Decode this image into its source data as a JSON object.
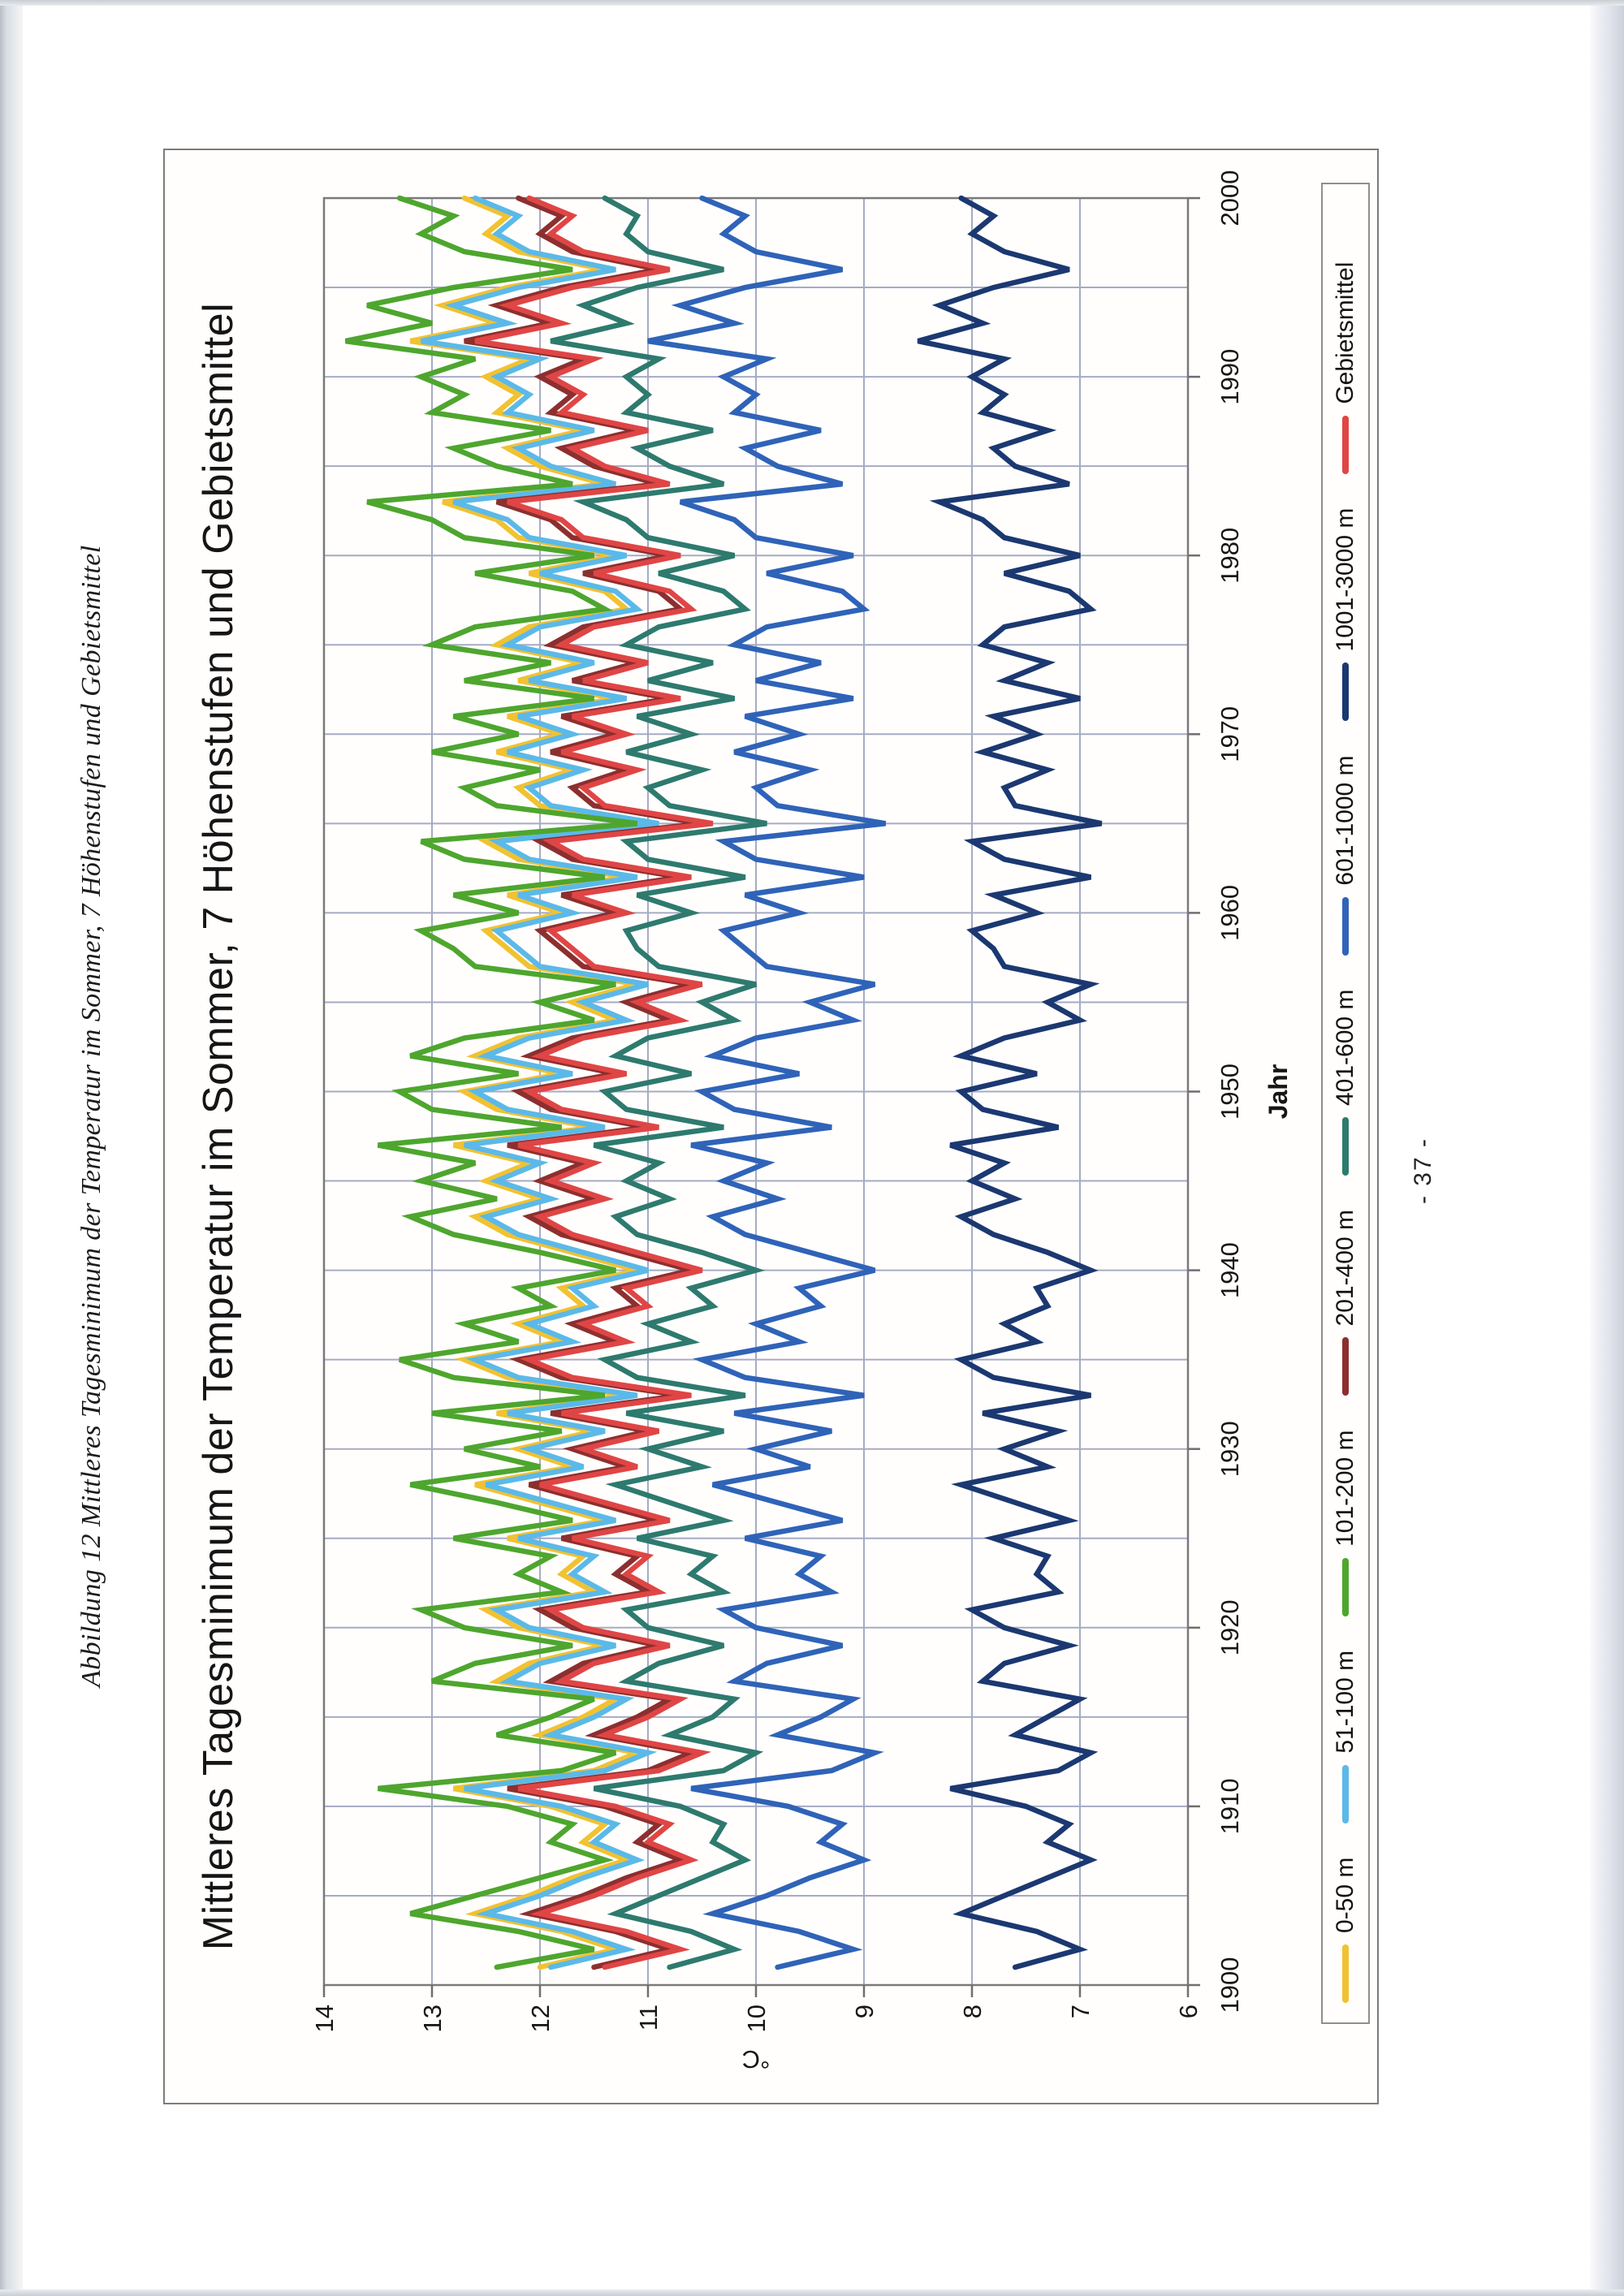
{
  "page": {
    "caption": "Abbildung 12 Mittleres Tagesminimum der Temperatur im Sommer, 7 Höhenstufen und Gebietsmittel",
    "page_number": "- 37 -"
  },
  "chart": {
    "title": "Mittleres Tagesminimum der Temperatur im Sommer, 7 Höhenstufen und Gebietsmittel",
    "x_axis_title": "Jahr",
    "y_axis_title": "°C",
    "x_tick_labels": [
      "1900",
      "1910",
      "1920",
      "1930",
      "1940",
      "1950",
      "1960",
      "1970",
      "1980",
      "1990",
      "2000"
    ],
    "y_tick_labels": [
      "14",
      "13",
      "12",
      "11",
      "10",
      "9",
      "8",
      "7",
      "6"
    ],
    "colors": {
      "gridline": "#a6abc4",
      "axis": "#6f6f6f",
      "plot_border": "#7a7a7a",
      "text": "#161616"
    }
  },
  "chart_data": {
    "type": "line",
    "title": "Mittleres Tagesminimum der Temperatur im Sommer, 7 Höhenstufen und Gebietsmittel",
    "xlabel": "Jahr",
    "ylabel": "°C",
    "xlim": [
      1900,
      2000
    ],
    "ylim": [
      6,
      14
    ],
    "x_grid_step": 5,
    "x_label_step": 10,
    "y_grid_step": 1,
    "grid": "on",
    "legend_position": "bottom",
    "orientation_note": "entire chart printed rotated 90deg counter-clockwise on portrait page",
    "x": [
      1901,
      1902,
      1903,
      1904,
      1905,
      1906,
      1907,
      1908,
      1909,
      1910,
      1911,
      1912,
      1913,
      1914,
      1915,
      1916,
      1917,
      1918,
      1919,
      1920,
      1921,
      1922,
      1923,
      1924,
      1925,
      1926,
      1927,
      1928,
      1929,
      1930,
      1931,
      1932,
      1933,
      1934,
      1935,
      1936,
      1937,
      1938,
      1939,
      1940,
      1941,
      1942,
      1943,
      1944,
      1945,
      1946,
      1947,
      1948,
      1949,
      1950,
      1951,
      1952,
      1953,
      1954,
      1955,
      1956,
      1957,
      1958,
      1959,
      1960,
      1961,
      1962,
      1963,
      1964,
      1965,
      1966,
      1967,
      1968,
      1969,
      1970,
      1971,
      1972,
      1973,
      1974,
      1975,
      1976,
      1977,
      1978,
      1979,
      1980,
      1981,
      1982,
      1983,
      1984,
      1985,
      1986,
      1987,
      1988,
      1989,
      1990,
      1991,
      1992,
      1993,
      1994,
      1995,
      1996,
      1997,
      1998,
      1999,
      2000
    ],
    "series": [
      {
        "name": "0-50 m",
        "color": "#f1c231",
        "values": [
          12.0,
          11.3,
          11.8,
          12.6,
          12.1,
          11.7,
          11.2,
          11.6,
          11.4,
          11.9,
          12.8,
          11.5,
          11.1,
          12.0,
          11.6,
          11.3,
          12.4,
          12.1,
          11.4,
          12.2,
          12.5,
          11.5,
          11.8,
          11.6,
          12.3,
          11.4,
          12.0,
          12.6,
          11.7,
          12.2,
          11.5,
          12.4,
          11.2,
          12.3,
          12.7,
          11.8,
          12.2,
          11.6,
          11.8,
          11.1,
          11.7,
          12.3,
          12.6,
          12.0,
          12.5,
          12.1,
          12.8,
          11.5,
          12.4,
          12.7,
          11.8,
          12.6,
          12.2,
          11.3,
          11.7,
          11.1,
          12.1,
          12.3,
          12.5,
          11.8,
          12.3,
          11.2,
          12.2,
          12.5,
          11.0,
          12.0,
          12.2,
          11.7,
          12.4,
          11.8,
          12.3,
          11.3,
          12.2,
          11.6,
          12.4,
          12.1,
          11.2,
          11.4,
          12.1,
          11.3,
          12.2,
          12.4,
          12.9,
          11.4,
          12.0,
          12.3,
          11.6,
          12.4,
          12.2,
          12.5,
          12.1,
          13.2,
          12.4,
          12.9,
          12.3,
          11.4,
          12.2,
          12.5,
          12.3,
          12.7
        ]
      },
      {
        "name": "51-100 m",
        "color": "#5bb9e9",
        "values": [
          11.9,
          11.2,
          11.7,
          12.5,
          12.0,
          11.6,
          11.1,
          11.5,
          11.3,
          11.8,
          12.7,
          11.4,
          11.0,
          11.9,
          11.5,
          11.2,
          12.3,
          12.0,
          11.3,
          12.1,
          12.4,
          11.4,
          11.7,
          11.5,
          12.2,
          11.3,
          11.9,
          12.5,
          11.6,
          12.1,
          11.4,
          12.3,
          11.1,
          12.2,
          12.6,
          11.7,
          12.1,
          11.5,
          11.7,
          11.0,
          11.6,
          12.2,
          12.5,
          11.9,
          12.4,
          12.0,
          12.7,
          11.4,
          12.3,
          12.6,
          11.7,
          12.5,
          12.1,
          11.2,
          11.6,
          11.0,
          12.0,
          12.2,
          12.4,
          11.7,
          12.2,
          11.1,
          12.1,
          12.4,
          10.9,
          11.9,
          12.1,
          11.6,
          12.3,
          11.7,
          12.2,
          11.2,
          12.1,
          11.5,
          12.3,
          12.0,
          11.1,
          11.3,
          12.0,
          11.2,
          12.1,
          12.3,
          12.8,
          11.3,
          11.9,
          12.2,
          11.5,
          12.3,
          12.1,
          12.4,
          12.0,
          13.1,
          12.3,
          12.8,
          12.2,
          11.3,
          12.1,
          12.4,
          12.2,
          12.6
        ]
      },
      {
        "name": "101-200 m",
        "color": "#4ea62e",
        "values": [
          12.4,
          11.5,
          12.2,
          13.2,
          12.6,
          12.0,
          11.4,
          11.9,
          11.7,
          12.3,
          13.5,
          11.8,
          11.3,
          12.4,
          11.9,
          11.5,
          13.0,
          12.6,
          11.7,
          12.7,
          13.1,
          11.8,
          12.2,
          11.9,
          12.8,
          11.7,
          12.4,
          13.2,
          12.0,
          12.7,
          11.8,
          13.0,
          11.4,
          12.8,
          13.3,
          12.2,
          12.7,
          11.9,
          12.2,
          11.3,
          12.0,
          12.8,
          13.2,
          12.4,
          13.1,
          12.6,
          13.5,
          11.8,
          13.0,
          13.3,
          12.2,
          13.2,
          12.7,
          11.5,
          12.0,
          11.3,
          12.6,
          12.8,
          13.1,
          12.2,
          12.8,
          11.4,
          12.7,
          13.1,
          11.1,
          12.4,
          12.7,
          12.0,
          13.0,
          12.2,
          12.8,
          11.5,
          12.7,
          11.9,
          13.0,
          12.6,
          11.4,
          11.7,
          12.6,
          11.5,
          12.7,
          13.0,
          13.6,
          11.7,
          12.4,
          12.8,
          11.9,
          13.0,
          12.7,
          13.1,
          12.6,
          13.8,
          13.0,
          13.6,
          12.8,
          11.7,
          12.7,
          13.1,
          12.8,
          13.3
        ]
      },
      {
        "name": "201-400 m",
        "color": "#8c2f2f",
        "values": [
          11.5,
          10.8,
          11.3,
          12.1,
          11.6,
          11.2,
          10.7,
          11.1,
          10.9,
          11.4,
          12.3,
          11.0,
          10.6,
          11.5,
          11.1,
          10.8,
          11.9,
          11.6,
          10.9,
          11.7,
          12.0,
          11.0,
          11.3,
          11.1,
          11.8,
          10.9,
          11.5,
          12.1,
          11.2,
          11.7,
          11.0,
          11.9,
          10.7,
          11.8,
          12.2,
          11.3,
          11.7,
          11.1,
          11.3,
          10.6,
          11.2,
          11.8,
          12.1,
          11.5,
          12.0,
          11.6,
          12.3,
          11.0,
          11.9,
          12.2,
          11.3,
          12.1,
          11.7,
          10.8,
          11.2,
          10.6,
          11.6,
          11.8,
          12.0,
          11.3,
          11.8,
          10.7,
          11.7,
          12.0,
          10.5,
          11.5,
          11.7,
          11.2,
          11.9,
          11.3,
          11.8,
          10.8,
          11.7,
          11.1,
          11.9,
          11.6,
          10.7,
          10.9,
          11.6,
          10.8,
          11.7,
          11.9,
          12.4,
          10.9,
          11.5,
          11.8,
          11.1,
          11.9,
          11.7,
          12.0,
          11.6,
          12.7,
          11.9,
          12.4,
          11.8,
          10.9,
          11.7,
          12.0,
          11.8,
          12.2
        ]
      },
      {
        "name": "401-600 m",
        "color": "#2e7a6e",
        "values": [
          10.8,
          10.2,
          10.6,
          11.3,
          10.9,
          10.5,
          10.1,
          10.4,
          10.3,
          10.7,
          11.5,
          10.3,
          10.0,
          10.8,
          10.4,
          10.2,
          11.2,
          10.9,
          10.3,
          11.0,
          11.2,
          10.3,
          10.6,
          10.4,
          11.1,
          10.3,
          10.8,
          11.3,
          10.5,
          11.0,
          10.3,
          11.2,
          10.1,
          11.1,
          11.4,
          10.6,
          11.0,
          10.4,
          10.6,
          10.0,
          10.5,
          11.1,
          11.3,
          10.8,
          11.2,
          10.9,
          11.5,
          10.3,
          11.2,
          11.4,
          10.6,
          11.3,
          11.0,
          10.2,
          10.5,
          10.0,
          10.9,
          11.1,
          11.2,
          10.6,
          11.1,
          10.1,
          11.0,
          11.2,
          9.9,
          10.8,
          11.0,
          10.5,
          11.2,
          10.6,
          11.1,
          10.2,
          11.0,
          10.4,
          11.2,
          10.9,
          10.1,
          10.3,
          10.9,
          10.2,
          11.0,
          11.2,
          11.6,
          10.3,
          10.8,
          11.1,
          10.4,
          11.2,
          11.0,
          11.2,
          10.9,
          11.9,
          11.2,
          11.6,
          11.1,
          10.3,
          11.0,
          11.2,
          11.1,
          11.4
        ]
      },
      {
        "name": "601-1000 m",
        "color": "#2f63b8",
        "values": [
          9.8,
          9.1,
          9.6,
          10.4,
          9.9,
          9.5,
          9.0,
          9.4,
          9.2,
          9.7,
          10.6,
          9.3,
          8.9,
          9.8,
          9.4,
          9.1,
          10.2,
          9.9,
          9.2,
          10.0,
          10.3,
          9.3,
          9.6,
          9.4,
          10.1,
          9.2,
          9.8,
          10.4,
          9.5,
          10.0,
          9.3,
          10.2,
          9.0,
          10.1,
          10.5,
          9.6,
          10.0,
          9.4,
          9.6,
          8.9,
          9.5,
          10.1,
          10.4,
          9.8,
          10.3,
          9.9,
          10.6,
          9.3,
          10.2,
          10.5,
          9.6,
          10.4,
          10.0,
          9.1,
          9.5,
          8.9,
          9.9,
          10.1,
          10.3,
          9.6,
          10.1,
          9.0,
          10.0,
          10.3,
          8.8,
          9.8,
          10.0,
          9.5,
          10.2,
          9.6,
          10.1,
          9.1,
          10.0,
          9.4,
          10.2,
          9.9,
          9.0,
          9.2,
          9.9,
          9.1,
          10.0,
          10.2,
          10.7,
          9.2,
          9.8,
          10.1,
          9.4,
          10.2,
          10.0,
          10.3,
          9.9,
          11.0,
          10.2,
          10.7,
          10.1,
          9.2,
          10.0,
          10.3,
          10.1,
          10.5
        ]
      },
      {
        "name": "1001-3000 m",
        "color": "#1b3871",
        "values": [
          7.6,
          7.0,
          7.4,
          8.1,
          7.7,
          7.3,
          6.9,
          7.3,
          7.1,
          7.5,
          8.2,
          7.2,
          6.9,
          7.6,
          7.3,
          7.0,
          7.9,
          7.7,
          7.1,
          7.7,
          8.0,
          7.2,
          7.4,
          7.3,
          7.8,
          7.1,
          7.6,
          8.1,
          7.3,
          7.7,
          7.2,
          7.9,
          6.9,
          7.8,
          8.1,
          7.4,
          7.7,
          7.3,
          7.4,
          6.9,
          7.3,
          7.8,
          8.1,
          7.6,
          8.0,
          7.7,
          8.2,
          7.2,
          7.9,
          8.1,
          7.4,
          8.1,
          7.7,
          7.0,
          7.3,
          6.9,
          7.7,
          7.8,
          8.0,
          7.4,
          7.8,
          6.9,
          7.7,
          8.0,
          6.8,
          7.6,
          7.7,
          7.3,
          7.9,
          7.4,
          7.8,
          7.0,
          7.7,
          7.3,
          7.9,
          7.7,
          6.9,
          7.1,
          7.7,
          7.0,
          7.7,
          7.9,
          8.3,
          7.1,
          7.6,
          7.8,
          7.3,
          7.9,
          7.7,
          8.0,
          7.7,
          8.5,
          7.9,
          8.3,
          7.8,
          7.1,
          7.7,
          8.0,
          7.8,
          8.1
        ]
      },
      {
        "name": "Gebietsmittel",
        "color": "#e04545",
        "values": [
          11.4,
          10.7,
          11.2,
          12.0,
          11.5,
          11.1,
          10.6,
          11.0,
          10.8,
          11.3,
          12.2,
          10.9,
          10.5,
          11.4,
          11.0,
          10.7,
          11.8,
          11.5,
          10.8,
          11.6,
          11.9,
          10.9,
          11.2,
          11.0,
          11.7,
          10.8,
          11.4,
          12.0,
          11.1,
          11.6,
          10.9,
          11.8,
          10.6,
          11.7,
          12.1,
          11.2,
          11.6,
          11.0,
          11.2,
          10.5,
          11.1,
          11.7,
          12.0,
          11.4,
          11.9,
          11.5,
          12.2,
          10.9,
          11.8,
          12.1,
          11.2,
          12.0,
          11.6,
          10.7,
          11.1,
          10.5,
          11.5,
          11.7,
          11.9,
          11.2,
          11.7,
          10.6,
          11.6,
          11.9,
          10.4,
          11.4,
          11.6,
          11.1,
          11.8,
          11.2,
          11.7,
          10.7,
          11.6,
          11.0,
          11.8,
          11.5,
          10.6,
          10.8,
          11.5,
          10.7,
          11.6,
          11.8,
          12.3,
          10.8,
          11.4,
          11.7,
          11.0,
          11.8,
          11.6,
          11.9,
          11.5,
          12.6,
          11.8,
          12.3,
          11.7,
          10.8,
          11.6,
          11.9,
          11.7,
          12.1
        ]
      }
    ]
  }
}
